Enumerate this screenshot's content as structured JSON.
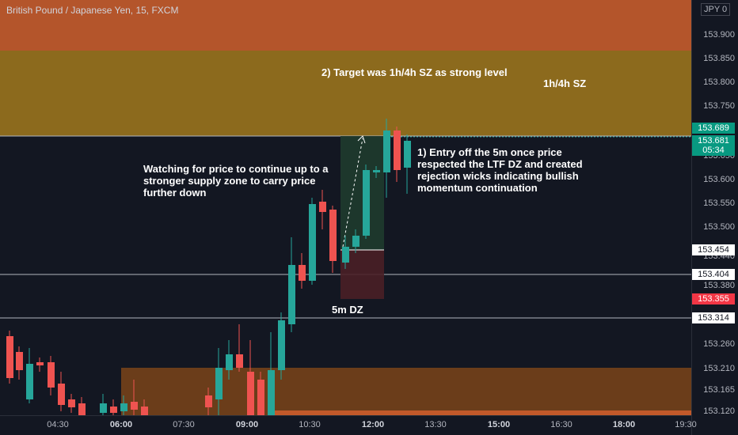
{
  "header": {
    "symbol_title": "British Pound / Japanese Yen, 15, FXCM",
    "currency": "JPY",
    "currency_suffix": "0"
  },
  "annotations": {
    "target": "2) Target was 1h/4h SZ as strong level",
    "sz_label": "1h/4h SZ",
    "entry_line1": "1) Entry off the 5m once price",
    "entry_line2": "respected the LTF DZ and created",
    "entry_line3": "rejection wicks indicating bullish",
    "entry_line4": "momentum continuation",
    "watch_line1": "Watching for price to continue up to a",
    "watch_line2": "stronger supply zone to carry price",
    "watch_line3": "further down",
    "dz_label": "5m DZ"
  },
  "price_axis": {
    "ticks": [
      "153.900",
      "153.850",
      "153.800",
      "153.750",
      "153.650",
      "153.600",
      "153.550",
      "153.500",
      "153.440",
      "153.380",
      "153.260",
      "153.210",
      "153.165",
      "153.120"
    ],
    "badges": [
      {
        "label": "153.689",
        "style": "green"
      },
      {
        "label": "153.681",
        "sub": "05:34",
        "style": "teal"
      },
      {
        "label": "153.454",
        "style": "white"
      },
      {
        "label": "153.404",
        "style": "white"
      },
      {
        "label": "153.355",
        "style": "red"
      },
      {
        "label": "153.314",
        "style": "white"
      }
    ]
  },
  "time_axis": [
    {
      "label": "04:30",
      "bold": false
    },
    {
      "label": "06:00",
      "bold": true
    },
    {
      "label": "07:30",
      "bold": false
    },
    {
      "label": "09:00",
      "bold": true
    },
    {
      "label": "10:30",
      "bold": false
    },
    {
      "label": "12:00",
      "bold": true
    },
    {
      "label": "13:30",
      "bold": false
    },
    {
      "label": "15:00",
      "bold": true
    },
    {
      "label": "16:30",
      "bold": false
    },
    {
      "label": "18:00",
      "bold": true
    },
    {
      "label": "19:30",
      "bold": false
    }
  ],
  "colors": {
    "up": "#26a69a",
    "down": "#ef5350",
    "background": "#131722",
    "zone_top": "#b2532a",
    "zone_mid": "#8a6a1c",
    "zone_bottom": "#6b3a1a"
  }
}
